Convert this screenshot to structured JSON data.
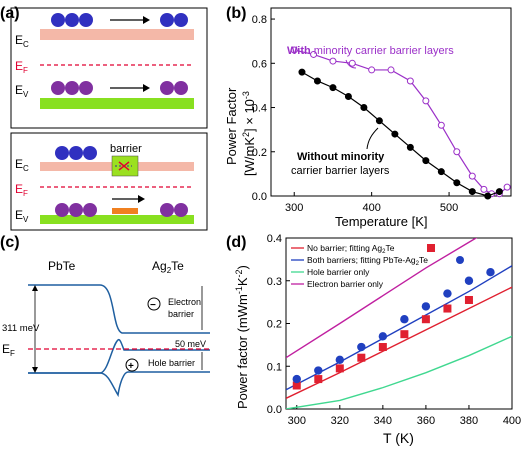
{
  "panels": {
    "a": {
      "label": "(a)",
      "top": {
        "ec": "E",
        "ec_sub": "C",
        "ef": "E",
        "ef_sub": "F",
        "ev": "E",
        "ev_sub": "V",
        "electron": "e",
        "hole": "h"
      },
      "bottom": {
        "barrier": "barrier",
        "ec": "E",
        "ec_sub": "C",
        "ef": "E",
        "ef_sub": "F",
        "ev": "E",
        "ev_sub": "V"
      }
    },
    "c": {
      "label": "(c)",
      "left_material": "PbTe",
      "right_material": "Ag",
      "right_material_sub": "2",
      "right_material_tail": "Te",
      "electron_barrier_1": "Electron",
      "electron_barrier_2": "barrier",
      "hole_barrier": "Hole barrier",
      "e311": "311 meV",
      "e50": "50 meV",
      "ef": "E",
      "ef_sub": "F",
      "minus": "−",
      "plus": "+"
    }
  },
  "chart_data": [
    {
      "panel": "(b)",
      "type": "line",
      "xlabel": "Temperature [K]",
      "ylabel_1": "Power Factor",
      "ylabel_2": "[W/mK",
      "ylabel_sup": "2",
      "ylabel_3": "] × 10",
      "ylabel_sup2": "-3",
      "xlim": [
        270,
        580
      ],
      "ylim": [
        0,
        0.85
      ],
      "xticks": [
        300,
        400,
        500
      ],
      "yticks": [
        0.0,
        0.2,
        0.4,
        0.6,
        0.8
      ],
      "xtick_labels": [
        "300",
        "400",
        "500"
      ],
      "ytick_labels": [
        "0.0",
        "0.2",
        "0.4",
        "0.6",
        "0.8"
      ],
      "annotations": {
        "with_bold": "With",
        "with_rest": " minority carrier barrier layers",
        "without_1": "Without minority",
        "without_2": "carrier barrier layers"
      },
      "series": [
        {
          "color": "#9b30c8",
          "marker": "open-circle",
          "x": [
            300,
            325,
            350,
            375,
            400,
            425,
            450,
            470,
            490,
            510,
            530,
            545,
            555,
            565,
            575
          ],
          "y": [
            0.66,
            0.64,
            0.61,
            0.6,
            0.57,
            0.57,
            0.52,
            0.43,
            0.32,
            0.2,
            0.09,
            0.03,
            0.01,
            0.01,
            0.04
          ]
        },
        {
          "color": "#000000",
          "marker": "filled-circle",
          "x": [
            310,
            330,
            350,
            370,
            390,
            410,
            430,
            450,
            470,
            490,
            510,
            530,
            550,
            565
          ],
          "y": [
            0.56,
            0.52,
            0.49,
            0.45,
            0.4,
            0.34,
            0.28,
            0.22,
            0.16,
            0.11,
            0.06,
            0.02,
            0.0,
            0.02
          ]
        }
      ]
    },
    {
      "panel": "(d)",
      "type": "line",
      "xlabel": "T (K)",
      "ylabel": "Power factor (mWm",
      "ylabel_sup1": "-1",
      "ylabel_mid": "K",
      "ylabel_sup2": "-2",
      "ylabel_end": ")",
      "xlim": [
        295,
        400
      ],
      "ylim": [
        0,
        0.4
      ],
      "xticks": [
        300,
        320,
        340,
        360,
        380,
        400
      ],
      "yticks": [
        0.0,
        0.1,
        0.2,
        0.3,
        0.4
      ],
      "xtick_labels": [
        "300",
        "320",
        "340",
        "360",
        "380",
        "400"
      ],
      "ytick_labels": [
        "0.0",
        "0.1",
        "0.2",
        "0.3",
        "0.4"
      ],
      "legend": [
        {
          "text": "No barrier; fitting Ag",
          "sub": "2",
          "tail": "Te",
          "color": "#e02030",
          "symbol": "square"
        },
        {
          "text": "Both barriers; fitting PbTe-Ag",
          "sub": "2",
          "tail": "Te",
          "color": "#2040c0",
          "symbol": "circle"
        },
        {
          "text": "Hole barrier only",
          "color": "#40d890",
          "symbol": "none"
        },
        {
          "text": "Electron barrier only",
          "color": "#c020a0",
          "symbol": "none"
        }
      ],
      "lines": [
        {
          "name": "No barrier",
          "color": "#e02030",
          "x": [
            295,
            320,
            340,
            360,
            380,
            400
          ],
          "y": [
            0.025,
            0.085,
            0.135,
            0.185,
            0.235,
            0.285
          ]
        },
        {
          "name": "Both barriers",
          "color": "#2040c0",
          "x": [
            295,
            320,
            340,
            360,
            380,
            400
          ],
          "y": [
            0.045,
            0.11,
            0.165,
            0.22,
            0.275,
            0.335
          ]
        },
        {
          "name": "Hole barrier only",
          "color": "#40d890",
          "x": [
            295,
            320,
            340,
            360,
            380,
            400
          ],
          "y": [
            0.0,
            0.02,
            0.05,
            0.085,
            0.125,
            0.17
          ]
        },
        {
          "name": "Electron barrier only",
          "color": "#c020a0",
          "x": [
            295,
            320,
            340,
            360,
            380,
            400
          ],
          "y": [
            0.12,
            0.2,
            0.265,
            0.33,
            0.39,
            0.45
          ]
        }
      ],
      "points": [
        {
          "symbol": "square",
          "color": "#e02030",
          "x": [
            300,
            310,
            320,
            330,
            340,
            350,
            360,
            370,
            380
          ],
          "y": [
            0.055,
            0.07,
            0.095,
            0.12,
            0.145,
            0.175,
            0.21,
            0.235,
            0.255
          ]
        },
        {
          "symbol": "circle",
          "color": "#2040c0",
          "x": [
            300,
            310,
            320,
            330,
            340,
            350,
            360,
            370,
            380,
            390
          ],
          "y": [
            0.07,
            0.09,
            0.115,
            0.145,
            0.17,
            0.21,
            0.24,
            0.27,
            0.3,
            0.32
          ]
        }
      ]
    }
  ]
}
